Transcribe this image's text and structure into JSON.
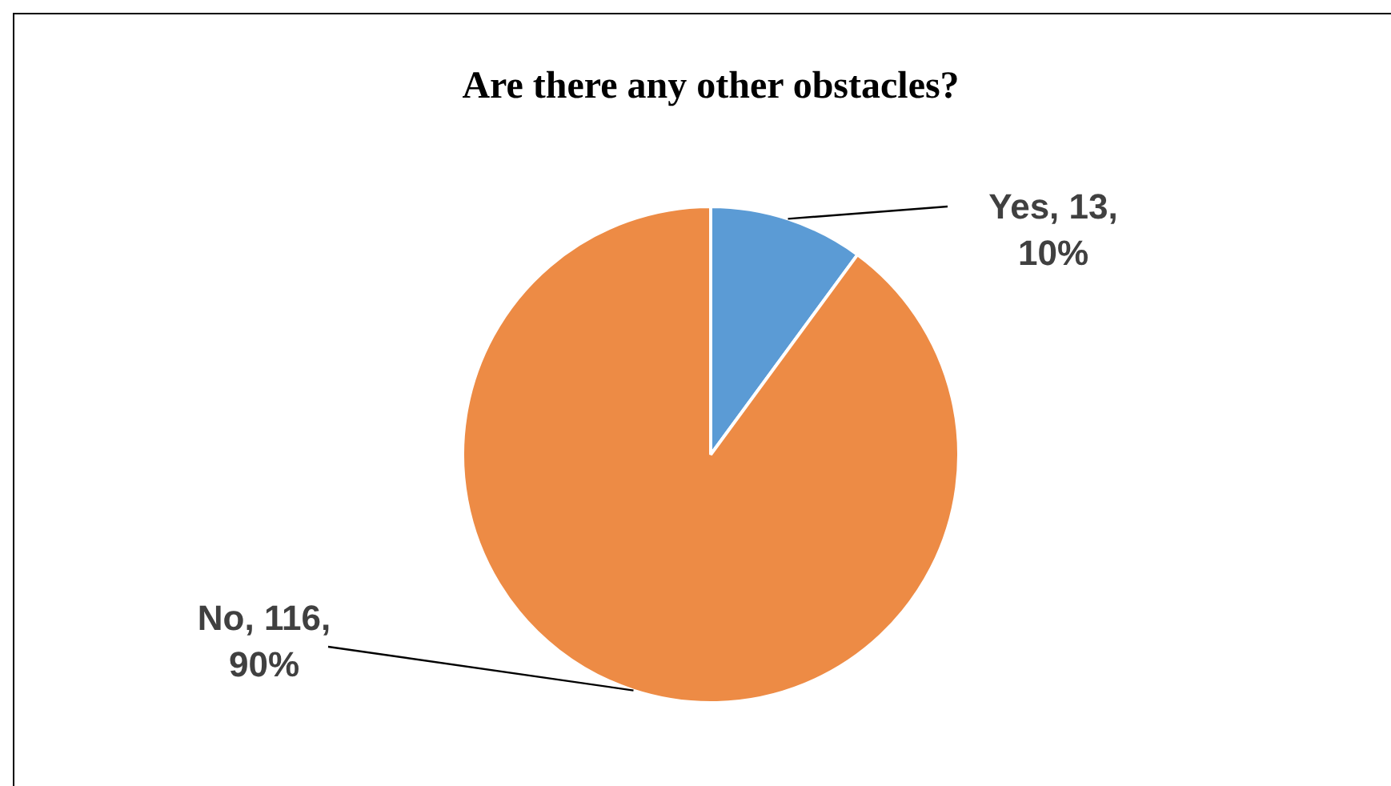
{
  "chart_data": {
    "type": "pie",
    "title": "Are there any other obstacles?",
    "categories": [
      "Yes",
      "No"
    ],
    "values": [
      13,
      116
    ],
    "colors": [
      "#5b9bd5",
      "#ed8b45"
    ],
    "value_labels": [
      "13, 10%",
      "116, 90%"
    ],
    "legend": false
  }
}
